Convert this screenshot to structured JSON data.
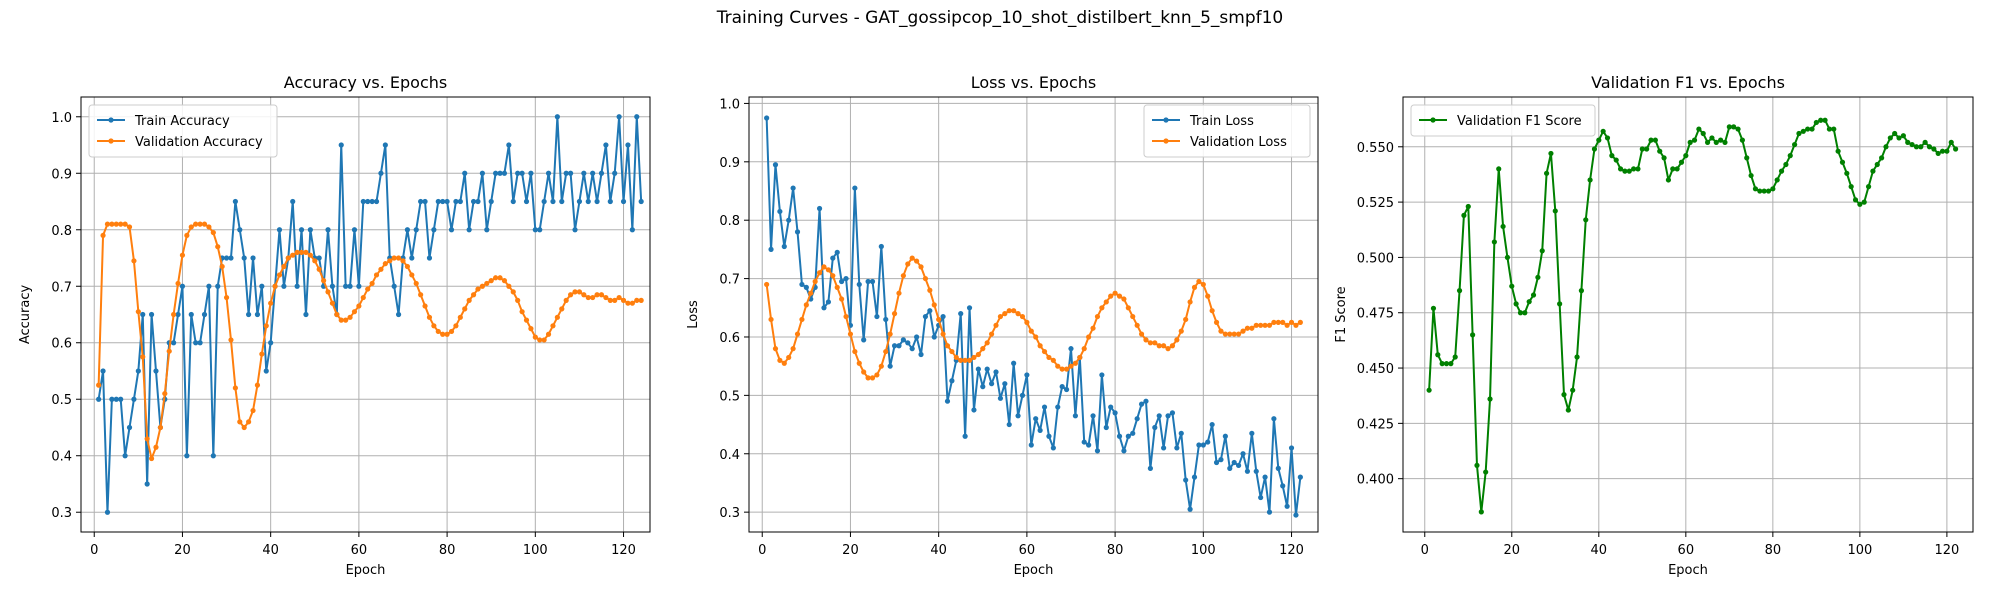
{
  "figure": {
    "title": "Training Curves - GAT_gossipcop_10_shot_distilbert_knn_5_smpf10"
  },
  "colors": {
    "blue": "#1f77b4",
    "orange": "#ff7f0e",
    "green": "#008000",
    "grid": "#b0b0b0"
  },
  "chart_data": [
    {
      "type": "line",
      "title": "Accuracy vs. Epochs",
      "xlabel": "Epoch",
      "ylabel": "Accuracy",
      "xlim": [
        -3,
        126
      ],
      "ylim": [
        0.265,
        1.035
      ],
      "xticks": [
        0,
        20,
        40,
        60,
        80,
        100,
        120
      ],
      "yticks": [
        0.3,
        0.4,
        0.5,
        0.6,
        0.7,
        0.8,
        0.9,
        1.0
      ],
      "grid": true,
      "legend": "upper left",
      "series": [
        {
          "name": "Train Accuracy",
          "color": "#1f77b4",
          "x_start": 1,
          "values": [
            0.5,
            0.55,
            0.3,
            0.5,
            0.5,
            0.5,
            0.4,
            0.45,
            0.5,
            0.55,
            0.65,
            0.35,
            0.65,
            0.55,
            0.45,
            0.5,
            0.6,
            0.6,
            0.65,
            0.7,
            0.4,
            0.65,
            0.6,
            0.6,
            0.65,
            0.7,
            0.4,
            0.7,
            0.75,
            0.75,
            0.75,
            0.85,
            0.8,
            0.75,
            0.65,
            0.75,
            0.65,
            0.7,
            0.55,
            0.6,
            0.7,
            0.8,
            0.7,
            0.75,
            0.85,
            0.7,
            0.8,
            0.65,
            0.8,
            0.75,
            0.75,
            0.7,
            0.8,
            0.7,
            0.65,
            0.95,
            0.7,
            0.7,
            0.8,
            0.7,
            0.85,
            0.85,
            0.85,
            0.85,
            0.9,
            0.95,
            0.75,
            0.7,
            0.65,
            0.75,
            0.8,
            0.75,
            0.8,
            0.85,
            0.85,
            0.75,
            0.8,
            0.85,
            0.85,
            0.85,
            0.8,
            0.85,
            0.85,
            0.9,
            0.8,
            0.85,
            0.85,
            0.9,
            0.8,
            0.85,
            0.9,
            0.9,
            0.9,
            0.95,
            0.85,
            0.9,
            0.9,
            0.85,
            0.9,
            0.8,
            0.8,
            0.85,
            0.9,
            0.85,
            1.0,
            0.85,
            0.9,
            0.9,
            0.8,
            0.85,
            0.9,
            0.85,
            0.9,
            0.85,
            0.9,
            0.95,
            0.85,
            0.9,
            1.0,
            0.85,
            0.95,
            0.8,
            1.0,
            0.85
          ]
        },
        {
          "name": "Validation Accuracy",
          "color": "#ff7f0e",
          "x_start": 1,
          "values": [
            0.525,
            0.79,
            0.81,
            0.81,
            0.81,
            0.81,
            0.81,
            0.805,
            0.745,
            0.655,
            0.575,
            0.43,
            0.395,
            0.415,
            0.45,
            0.51,
            0.585,
            0.65,
            0.705,
            0.755,
            0.79,
            0.805,
            0.81,
            0.81,
            0.81,
            0.805,
            0.795,
            0.77,
            0.735,
            0.68,
            0.605,
            0.52,
            0.46,
            0.45,
            0.46,
            0.48,
            0.525,
            0.58,
            0.63,
            0.67,
            0.7,
            0.72,
            0.735,
            0.75,
            0.755,
            0.76,
            0.76,
            0.76,
            0.755,
            0.745,
            0.73,
            0.71,
            0.69,
            0.67,
            0.65,
            0.64,
            0.64,
            0.645,
            0.655,
            0.665,
            0.68,
            0.695,
            0.705,
            0.72,
            0.73,
            0.74,
            0.745,
            0.75,
            0.75,
            0.745,
            0.735,
            0.72,
            0.705,
            0.685,
            0.665,
            0.645,
            0.63,
            0.62,
            0.615,
            0.615,
            0.62,
            0.63,
            0.645,
            0.66,
            0.675,
            0.685,
            0.695,
            0.7,
            0.705,
            0.71,
            0.715,
            0.715,
            0.71,
            0.7,
            0.69,
            0.675,
            0.655,
            0.64,
            0.625,
            0.61,
            0.605,
            0.605,
            0.615,
            0.63,
            0.645,
            0.66,
            0.675,
            0.685,
            0.69,
            0.69,
            0.685,
            0.68,
            0.68,
            0.685,
            0.685,
            0.68,
            0.675,
            0.675,
            0.68,
            0.675,
            0.67,
            0.67,
            0.675,
            0.675
          ]
        }
      ]
    },
    {
      "type": "line",
      "title": "Loss vs. Epochs",
      "xlabel": "Epoch",
      "ylabel": "Loss",
      "xlim": [
        -3,
        126
      ],
      "ylim": [
        0.266,
        1.011
      ],
      "xticks": [
        0,
        20,
        40,
        60,
        80,
        100,
        120
      ],
      "yticks": [
        0.3,
        0.4,
        0.5,
        0.6,
        0.7,
        0.8,
        0.9,
        1.0
      ],
      "grid": true,
      "legend": "upper right",
      "series": [
        {
          "name": "Train Loss",
          "color": "#1f77b4",
          "x_start": 1,
          "values": [
            0.975,
            0.75,
            0.895,
            0.815,
            0.755,
            0.8,
            0.855,
            0.78,
            0.69,
            0.685,
            0.665,
            0.685,
            0.82,
            0.65,
            0.66,
            0.735,
            0.745,
            0.695,
            0.7,
            0.62,
            0.855,
            0.69,
            0.595,
            0.695,
            0.695,
            0.635,
            0.755,
            0.63,
            0.55,
            0.585,
            0.585,
            0.595,
            0.59,
            0.58,
            0.6,
            0.57,
            0.635,
            0.645,
            0.6,
            0.62,
            0.635,
            0.49,
            0.525,
            0.56,
            0.64,
            0.43,
            0.65,
            0.475,
            0.545,
            0.515,
            0.545,
            0.52,
            0.54,
            0.495,
            0.52,
            0.45,
            0.555,
            0.465,
            0.5,
            0.535,
            0.415,
            0.46,
            0.44,
            0.48,
            0.43,
            0.41,
            0.48,
            0.515,
            0.51,
            0.58,
            0.465,
            0.565,
            0.42,
            0.415,
            0.465,
            0.405,
            0.535,
            0.445,
            0.48,
            0.47,
            0.43,
            0.405,
            0.43,
            0.435,
            0.46,
            0.485,
            0.49,
            0.375,
            0.445,
            0.465,
            0.41,
            0.465,
            0.47,
            0.41,
            0.435,
            0.355,
            0.305,
            0.36,
            0.415,
            0.415,
            0.42,
            0.45,
            0.385,
            0.39,
            0.43,
            0.375,
            0.385,
            0.38,
            0.4,
            0.37,
            0.435,
            0.37,
            0.325,
            0.36,
            0.3,
            0.46,
            0.375,
            0.345,
            0.31,
            0.41,
            0.295,
            0.36
          ]
        },
        {
          "name": "Validation Loss",
          "color": "#ff7f0e",
          "x_start": 1,
          "values": [
            0.69,
            0.63,
            0.58,
            0.56,
            0.555,
            0.565,
            0.58,
            0.605,
            0.63,
            0.655,
            0.675,
            0.695,
            0.71,
            0.72,
            0.715,
            0.705,
            0.685,
            0.665,
            0.635,
            0.605,
            0.575,
            0.555,
            0.54,
            0.53,
            0.53,
            0.535,
            0.55,
            0.575,
            0.605,
            0.64,
            0.675,
            0.705,
            0.725,
            0.735,
            0.73,
            0.72,
            0.7,
            0.68,
            0.655,
            0.63,
            0.605,
            0.585,
            0.575,
            0.565,
            0.56,
            0.56,
            0.56,
            0.565,
            0.57,
            0.58,
            0.59,
            0.605,
            0.62,
            0.635,
            0.64,
            0.645,
            0.645,
            0.64,
            0.635,
            0.625,
            0.61,
            0.6,
            0.585,
            0.575,
            0.565,
            0.56,
            0.55,
            0.545,
            0.545,
            0.55,
            0.555,
            0.565,
            0.58,
            0.6,
            0.615,
            0.635,
            0.65,
            0.66,
            0.67,
            0.675,
            0.67,
            0.665,
            0.65,
            0.635,
            0.62,
            0.605,
            0.595,
            0.59,
            0.59,
            0.585,
            0.585,
            0.58,
            0.585,
            0.595,
            0.61,
            0.63,
            0.66,
            0.685,
            0.695,
            0.69,
            0.67,
            0.645,
            0.625,
            0.61,
            0.605,
            0.605,
            0.605,
            0.605,
            0.61,
            0.615,
            0.615,
            0.62,
            0.62,
            0.62,
            0.62,
            0.625,
            0.625,
            0.625,
            0.62,
            0.625,
            0.62,
            0.625
          ]
        }
      ]
    },
    {
      "type": "line",
      "title": "Validation F1 vs. Epochs",
      "xlabel": "Epoch",
      "ylabel": "F1 Score",
      "xlim": [
        -5,
        126
      ],
      "ylim": [
        0.3759,
        0.5725
      ],
      "xticks": [
        0,
        20,
        40,
        60,
        80,
        100,
        120
      ],
      "yticks": [
        0.4,
        0.425,
        0.45,
        0.475,
        0.5,
        0.525,
        0.55
      ],
      "ytick_labels": [
        "0.400",
        "0.425",
        "0.450",
        "0.475",
        "0.500",
        "0.525",
        "0.550"
      ],
      "grid": true,
      "legend": "upper left",
      "series": [
        {
          "name": "Validation F1 Score",
          "color": "#008000",
          "x_start": 1,
          "values": [
            0.44,
            0.477,
            0.456,
            0.452,
            0.452,
            0.452,
            0.455,
            0.485,
            0.519,
            0.523,
            0.465,
            0.406,
            0.385,
            0.403,
            0.436,
            0.507,
            0.54,
            0.514,
            0.5,
            0.487,
            0.479,
            0.475,
            0.475,
            0.48,
            0.483,
            0.491,
            0.503,
            0.538,
            0.547,
            0.521,
            0.479,
            0.438,
            0.431,
            0.44,
            0.455,
            0.485,
            0.517,
            0.535,
            0.549,
            0.553,
            0.557,
            0.554,
            0.546,
            0.544,
            0.54,
            0.539,
            0.539,
            0.54,
            0.54,
            0.549,
            0.549,
            0.553,
            0.553,
            0.548,
            0.545,
            0.535,
            0.54,
            0.54,
            0.543,
            0.546,
            0.552,
            0.553,
            0.558,
            0.556,
            0.552,
            0.554,
            0.552,
            0.553,
            0.552,
            0.559,
            0.559,
            0.558,
            0.553,
            0.545,
            0.537,
            0.531,
            0.53,
            0.53,
            0.53,
            0.531,
            0.535,
            0.539,
            0.542,
            0.546,
            0.551,
            0.556,
            0.557,
            0.558,
            0.558,
            0.561,
            0.562,
            0.562,
            0.558,
            0.558,
            0.548,
            0.543,
            0.538,
            0.532,
            0.526,
            0.524,
            0.525,
            0.532,
            0.539,
            0.542,
            0.545,
            0.55,
            0.554,
            0.556,
            0.554,
            0.555,
            0.552,
            0.551,
            0.55,
            0.55,
            0.552,
            0.55,
            0.549,
            0.547,
            0.548,
            0.548,
            0.552,
            0.549
          ]
        }
      ]
    }
  ]
}
